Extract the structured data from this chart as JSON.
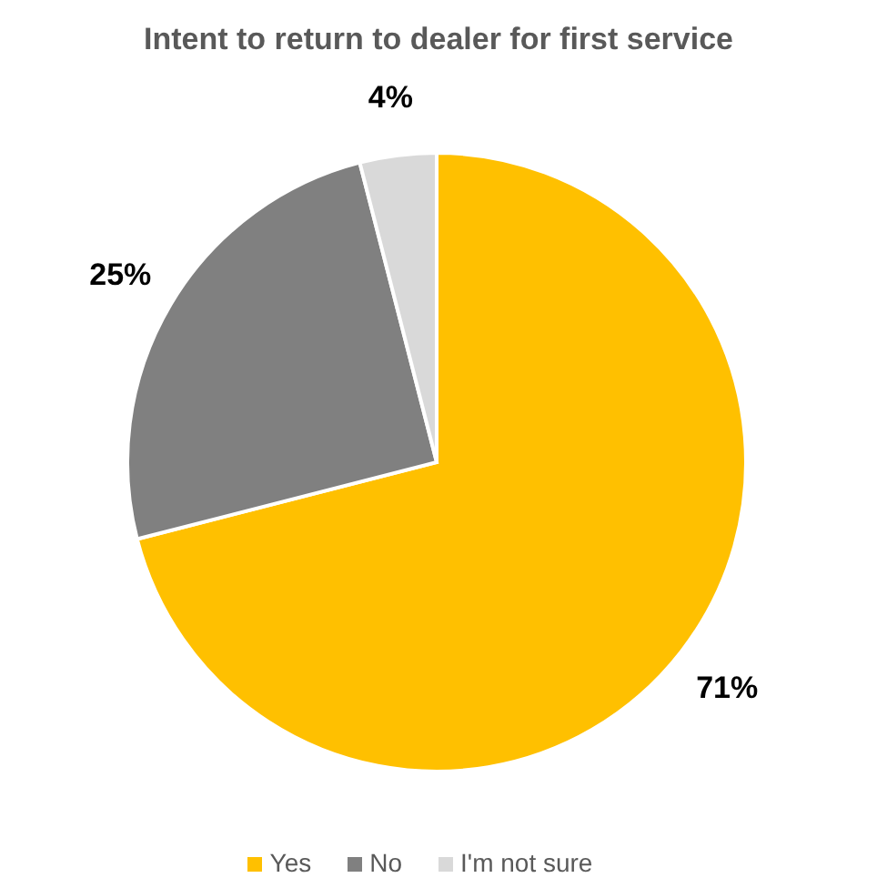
{
  "chart_data": {
    "type": "pie",
    "title": "Intent to return to dealer for first service",
    "categories": [
      "Yes",
      "No",
      "I'm not sure"
    ],
    "values": [
      71,
      25,
      4
    ],
    "colors": [
      "#ffc000",
      "#808080",
      "#d9d9d9"
    ],
    "value_labels": [
      "71%",
      "25%",
      "4%"
    ],
    "legend": "bottom"
  }
}
